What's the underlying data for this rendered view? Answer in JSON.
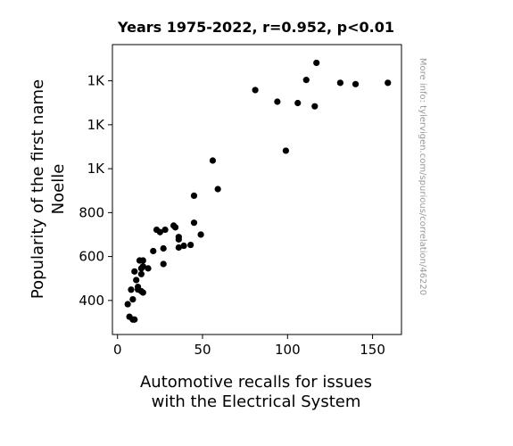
{
  "chart_data": {
    "type": "scatter",
    "title": "Years 1975-2022, r=0.952, p<0.01",
    "xlabel": [
      "Automotive recalls for issues",
      "with the Electrical System"
    ],
    "ylabel": [
      "Popularity of the first name",
      "Noelle"
    ],
    "xlim": [
      -3,
      167
    ],
    "ylim": [
      245,
      1565
    ],
    "x_ticks": [
      {
        "value": 0,
        "label": "0"
      },
      {
        "value": 50,
        "label": "50"
      },
      {
        "value": 100,
        "label": "100"
      },
      {
        "value": 150,
        "label": "150"
      }
    ],
    "y_ticks": [
      {
        "value": 400,
        "label": "400"
      },
      {
        "value": 600,
        "label": "600"
      },
      {
        "value": 800,
        "label": "800"
      },
      {
        "value": 1000,
        "label": "1K"
      },
      {
        "value": 1200,
        "label": "1K"
      },
      {
        "value": 1400,
        "label": "1K"
      }
    ],
    "watermark": "More info: tylervigen.com/spurious/correlation/46220",
    "points": [
      [
        6,
        383
      ],
      [
        7,
        326
      ],
      [
        9,
        313
      ],
      [
        10,
        313
      ],
      [
        9,
        405
      ],
      [
        8,
        449
      ],
      [
        10,
        532
      ],
      [
        11,
        493
      ],
      [
        12,
        462
      ],
      [
        12,
        450
      ],
      [
        13,
        582
      ],
      [
        15,
        582
      ],
      [
        14,
        520
      ],
      [
        14,
        546
      ],
      [
        15,
        555
      ],
      [
        14,
        442
      ],
      [
        15,
        436
      ],
      [
        18,
        546
      ],
      [
        21,
        625
      ],
      [
        23,
        722
      ],
      [
        25,
        711
      ],
      [
        28,
        722
      ],
      [
        27,
        566
      ],
      [
        27,
        637
      ],
      [
        33,
        741
      ],
      [
        34,
        733
      ],
      [
        36,
        689
      ],
      [
        36,
        678
      ],
      [
        36,
        641
      ],
      [
        39,
        649
      ],
      [
        43,
        653
      ],
      [
        45,
        754
      ],
      [
        49,
        700
      ],
      [
        45,
        877
      ],
      [
        59,
        907
      ],
      [
        56,
        1037
      ],
      [
        99,
        1082
      ],
      [
        81,
        1358
      ],
      [
        94,
        1305
      ],
      [
        106,
        1299
      ],
      [
        116,
        1284
      ],
      [
        111,
        1404
      ],
      [
        117,
        1482
      ],
      [
        131,
        1391
      ],
      [
        140,
        1385
      ],
      [
        159,
        1391
      ]
    ]
  }
}
